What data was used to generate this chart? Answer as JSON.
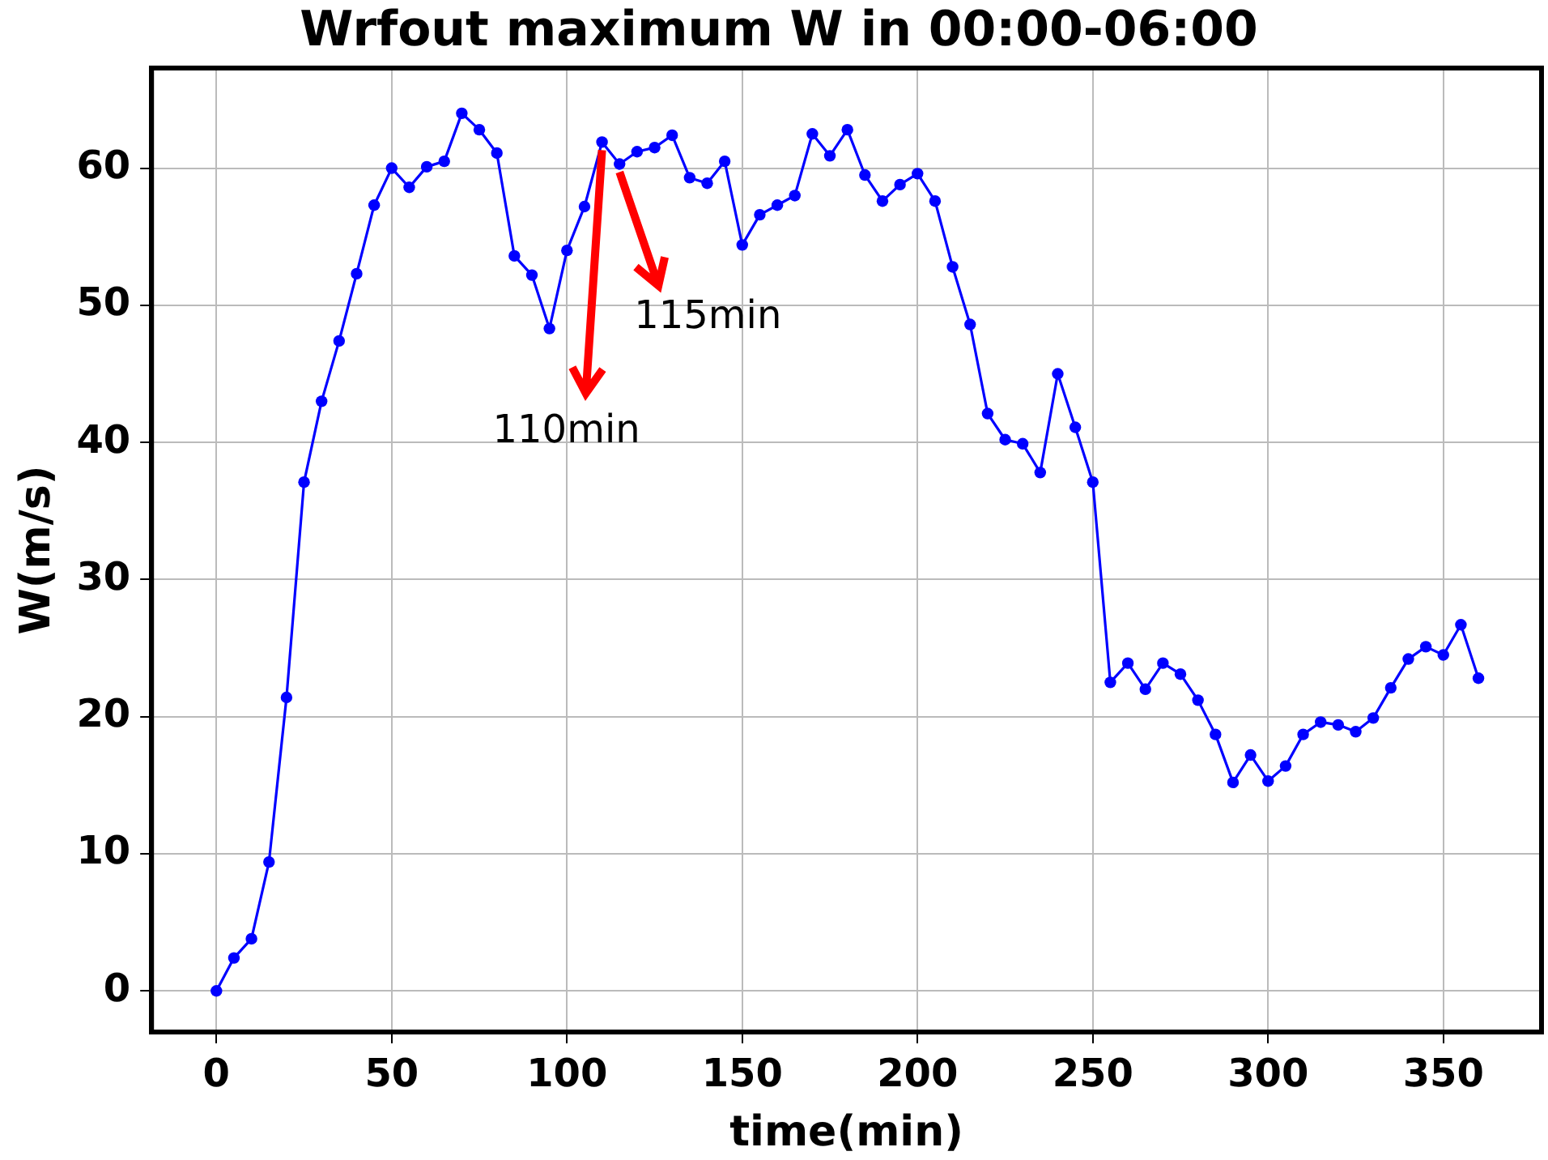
{
  "chart_data": {
    "type": "line",
    "title": "Wrfout maximum W in 00:00-06:00",
    "xlabel": "time(min)",
    "ylabel": "W(m/s)",
    "x": [
      0,
      5,
      10,
      15,
      20,
      25,
      30,
      35,
      40,
      45,
      50,
      55,
      60,
      65,
      70,
      75,
      80,
      85,
      90,
      95,
      100,
      105,
      110,
      115,
      120,
      125,
      130,
      135,
      140,
      145,
      150,
      155,
      160,
      165,
      170,
      175,
      180,
      185,
      190,
      195,
      200,
      205,
      210,
      215,
      220,
      225,
      230,
      235,
      240,
      245,
      250,
      255,
      260,
      265,
      270,
      275,
      280,
      285,
      290,
      295,
      300,
      305,
      310,
      315,
      320,
      325,
      330,
      335,
      340,
      345,
      350,
      355,
      360
    ],
    "series": [
      {
        "color": "#0000ff",
        "values": [
          0,
          2.4,
          3.8,
          9.4,
          21.4,
          37.1,
          43.0,
          47.4,
          52.3,
          57.3,
          60.0,
          58.6,
          60.1,
          60.5,
          64.0,
          62.8,
          61.1,
          53.6,
          52.2,
          48.3,
          54.0,
          57.2,
          61.9,
          60.3,
          61.2,
          61.5,
          62.4,
          59.3,
          58.9,
          60.5,
          54.4,
          56.6,
          57.3,
          58.0,
          62.5,
          60.9,
          62.8,
          59.5,
          57.6,
          58.8,
          59.6,
          57.6,
          52.8,
          48.6,
          42.1,
          40.2,
          39.9,
          37.8,
          45.0,
          41.1,
          37.1,
          22.5,
          23.9,
          22.0,
          23.9,
          23.1,
          21.2,
          18.7,
          15.2,
          17.2,
          15.3,
          16.4,
          18.7,
          19.6,
          19.4,
          18.9,
          19.9,
          22.1,
          24.2,
          25.1,
          24.5,
          26.7,
          22.8
        ]
      }
    ],
    "xlim": [
      -18.5,
      378
    ],
    "xticks": [
      0,
      50,
      100,
      150,
      200,
      250,
      300,
      350
    ],
    "ylim": [
      -3,
      67.3
    ],
    "yticks": [
      0,
      10,
      20,
      30,
      40,
      50,
      60
    ],
    "grid": true,
    "legend": false,
    "marker": "circle",
    "line_style": "solid",
    "annotations": [
      {
        "text": "110min",
        "x": 110,
        "y": 61.9
      },
      {
        "text": "115min",
        "x": 115,
        "y": 60.3
      }
    ]
  }
}
